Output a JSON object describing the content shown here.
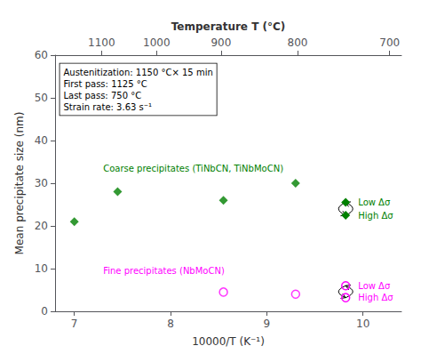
{
  "chart_data": {
    "type": "scatter",
    "xlabel": "10000/T (K⁻¹)",
    "ylabel": "Mean precipitate size (nm)",
    "x2label": "Temperature T (°C)",
    "xlim": [
      6.8,
      10.4
    ],
    "xticks": [
      7,
      8,
      9,
      10
    ],
    "ylim": [
      0,
      60
    ],
    "yticks": [
      0,
      10,
      20,
      30,
      40,
      50,
      60
    ],
    "x2lim": [
      6.8,
      10.4
    ],
    "x2ticks": [
      {
        "value": 7.2833,
        "label": "1100"
      },
      {
        "value": 7.8555,
        "label": "1000"
      },
      {
        "value": 8.5251,
        "label": "900"
      },
      {
        "value": 9.3197,
        "label": "800"
      },
      {
        "value": 10.2775,
        "label": "700"
      }
    ],
    "grid": false,
    "series": [
      {
        "name": "Coarse precipitates (TiNbCN, TiNbMoCN)",
        "color": "#008000",
        "marker": "diamond",
        "x": [
          7.0,
          7.45,
          8.55,
          9.3
        ],
        "values": [
          21,
          28,
          26,
          30
        ]
      },
      {
        "name": "Fine precipitates (NbMoCN)",
        "color": "#FF00FF",
        "marker": "open circle",
        "x": [
          8.55,
          9.3
        ],
        "values": [
          4.5,
          4.0
        ]
      }
    ],
    "annotations": [
      "Austenitization: 1150 °C× 15 min",
      "First pass: 1125 °C",
      "Last pass: 750 °C",
      "Strain rate: 3.63 s⁻¹"
    ],
    "key_labels": [
      "Low Δσ",
      "High Δσ"
    ]
  }
}
